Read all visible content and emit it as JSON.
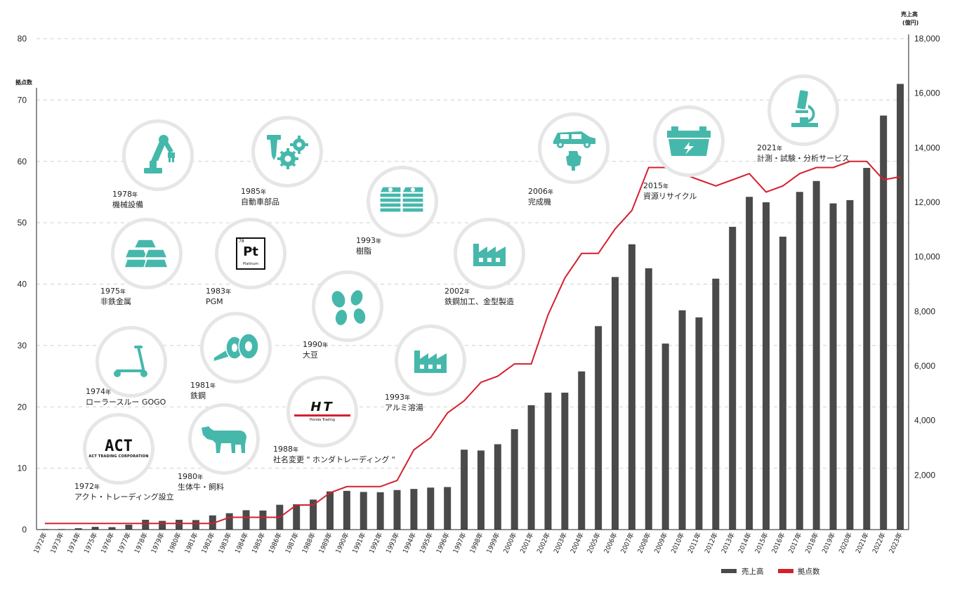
{
  "colors": {
    "bar": "#4a4a4a",
    "line": "#d4202e",
    "icon": "#45b8ab",
    "grid": "#cfcfcf",
    "circle_border": "#e6e6e6"
  },
  "chart_data": {
    "type": "bar",
    "categories": [
      "1972年",
      "1973年",
      "1974年",
      "1975年",
      "1976年",
      "1977年",
      "1978年",
      "1979年",
      "1980年",
      "1981年",
      "1982年",
      "1983年",
      "1984年",
      "1985年",
      "1986年",
      "1987年",
      "1988年",
      "1989年",
      "1990年",
      "1991年",
      "1992年",
      "1993年",
      "1994年",
      "1995年",
      "1996年",
      "1997年",
      "1998年",
      "1999年",
      "2000年",
      "2001年",
      "2002年",
      "2003年",
      "2004年",
      "2005年",
      "2006年",
      "2007年",
      "2008年",
      "2009年",
      "2010年",
      "2011年",
      "2012年",
      "2013年",
      "2014年",
      "2015年",
      "2016年",
      "2017年",
      "2018年",
      "2019年",
      "2020年",
      "2021年",
      "2022年",
      "2023年"
    ],
    "series": [
      {
        "name": "売上高",
        "type": "bar",
        "axis": "right",
        "values": [
          20,
          20,
          50,
          100,
          90,
          180,
          360,
          320,
          360,
          350,
          520,
          600,
          710,
          700,
          910,
          930,
          1100,
          1400,
          1420,
          1380,
          1370,
          1450,
          1490,
          1540,
          1560,
          2930,
          2900,
          3130,
          3680,
          4560,
          5020,
          5020,
          5800,
          7460,
          9260,
          10460,
          9580,
          6820,
          8040,
          7780,
          9200,
          11100,
          12200,
          12000,
          10740,
          12380,
          12780,
          11960,
          12080,
          13260,
          15180,
          16340
        ]
      },
      {
        "name": "拠点数",
        "type": "line",
        "axis": "left",
        "values": [
          1,
          1,
          1,
          1,
          1,
          1,
          1,
          1,
          1,
          1,
          1,
          2,
          2,
          2,
          2,
          4,
          4,
          6,
          7,
          7,
          7,
          8,
          13,
          15,
          19,
          21,
          24,
          25,
          27,
          27,
          35,
          41,
          45,
          45,
          49,
          52,
          59,
          59,
          58,
          57,
          56,
          57,
          58,
          55,
          56,
          58,
          59,
          59,
          60,
          60,
          57,
          57.5
        ]
      }
    ],
    "y_left": {
      "label": "拠点数",
      "ylim": [
        0,
        80
      ],
      "ticks": [
        "0",
        "10",
        "20",
        "30",
        "40",
        "50",
        "60",
        "70",
        "80"
      ]
    },
    "y_right": {
      "label_line1": "売上高",
      "label_line2": "(億円)",
      "ylim": [
        0,
        18000
      ],
      "ticks": [
        "2,000",
        "4,000",
        "6,000",
        "8,000",
        "10,000",
        "12,000",
        "14,000",
        "16,000",
        "18,000"
      ]
    },
    "grid": "horizontal dashed",
    "legend": {
      "position": "bottom-right",
      "items": [
        "売上高",
        "拠点数"
      ]
    }
  },
  "milestones": [
    {
      "id": "act",
      "year": "1972",
      "unit": "年",
      "label": "アクト・トレーディング設立",
      "icon": "act-logo",
      "logo_big": "ACT",
      "logo_small": "ACT TRADING CORPORATION"
    },
    {
      "id": "gogo",
      "year": "1974",
      "unit": "年",
      "label": "ローラースルー GOGO",
      "icon": "kick-scooter-icon"
    },
    {
      "id": "metal",
      "year": "1975",
      "unit": "年",
      "label": "非鉄金属",
      "icon": "gold-bars-icon"
    },
    {
      "id": "robot",
      "year": "1978",
      "unit": "年",
      "label": "機械設備",
      "icon": "robot-arm-icon"
    },
    {
      "id": "cattle",
      "year": "1980",
      "unit": "年",
      "label": "生体牛・飼料",
      "icon": "cow-icon"
    },
    {
      "id": "steel",
      "year": "1981",
      "unit": "年",
      "label": "鉄鋼",
      "icon": "steel-coil-icon"
    },
    {
      "id": "pgm",
      "year": "1983",
      "unit": "年",
      "label": "PGM",
      "icon": "platinum-element-icon",
      "el_num": "78",
      "el_sym": "Pt",
      "el_name": "Platinum"
    },
    {
      "id": "auto",
      "year": "1985",
      "unit": "年",
      "label": "自動車部品",
      "icon": "screw-gears-icon"
    },
    {
      "id": "rename",
      "year": "1988",
      "unit": "年",
      "label": "社名変更 \" ホンダトレーディング \"",
      "icon": "ht-logo",
      "logo_big": "HT",
      "logo_small": "Honda Trading"
    },
    {
      "id": "soy",
      "year": "1990",
      "unit": "年",
      "label": "大豆",
      "icon": "soybeans-icon"
    },
    {
      "id": "resin",
      "year": "1993",
      "unit": "年",
      "label": "樹脂",
      "icon": "resin-stacks-icon"
    },
    {
      "id": "alu",
      "year": "1993",
      "unit": "年",
      "label": "アルミ溶湯",
      "icon": "factory-icon"
    },
    {
      "id": "mold",
      "year": "2002",
      "unit": "年",
      "label": "鉄鋼加工、金型製造",
      "icon": "factory-icon"
    },
    {
      "id": "vehicle",
      "year": "2006",
      "unit": "年",
      "label": "完成機",
      "icon": "car-scooter-icon"
    },
    {
      "id": "recycle",
      "year": "2015",
      "unit": "年",
      "label": "資源リサイクル",
      "icon": "battery-icon"
    },
    {
      "id": "lab",
      "year": "2021",
      "unit": "年",
      "label": "計測・試験・分析サービス",
      "icon": "microscope-icon"
    }
  ]
}
